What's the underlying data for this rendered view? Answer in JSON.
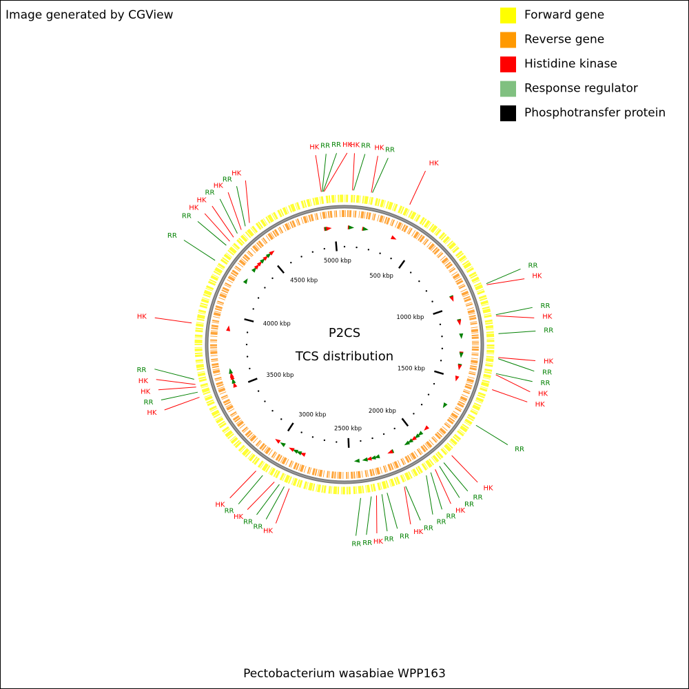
{
  "header_note": "Image generated by CGView",
  "center_title": "P2CS",
  "center_subtitle": "TCS distribution",
  "footer": "Pectobacterium wasabiae WPP163",
  "legend": [
    {
      "label": "Forward gene",
      "color": "#ffff00"
    },
    {
      "label": "Reverse gene",
      "color": "#ff9900"
    },
    {
      "label": "Histidine kinase",
      "color": "#ff0000"
    },
    {
      "label": "Response regulator",
      "color": "#80c080"
    },
    {
      "label": "Phosphotransfer protein",
      "color": "#000000"
    }
  ],
  "sequence_length_kbp": 5067,
  "ticks": [
    {
      "value": 500,
      "label": "500 kbp"
    },
    {
      "value": 1000,
      "label": "1000 kbp"
    },
    {
      "value": 1500,
      "label": "1500 kbp"
    },
    {
      "value": 2000,
      "label": "2000 kbp"
    },
    {
      "value": 2500,
      "label": "2500 kbp"
    },
    {
      "value": 3000,
      "label": "3000 kbp"
    },
    {
      "value": 3500,
      "label": "3500 kbp"
    },
    {
      "value": 4000,
      "label": "4000 kbp"
    },
    {
      "value": 4500,
      "label": "4500 kbp"
    },
    {
      "value": 5000,
      "label": "5000 kbp"
    }
  ],
  "features": [
    {
      "label": "HK",
      "color": "#ff0000",
      "position_kbp": 42
    },
    {
      "label": "RR",
      "color": "#008000",
      "position_kbp": 48
    },
    {
      "label": "HK",
      "color": "#ff0000",
      "position_kbp": 141
    },
    {
      "label": "RR",
      "color": "#008000",
      "position_kbp": 147
    },
    {
      "label": "HK",
      "color": "#ff0000",
      "position_kbp": 352
    },
    {
      "label": "RR",
      "color": "#008000",
      "position_kbp": 940
    },
    {
      "label": "HK",
      "color": "#ff0000",
      "position_kbp": 946
    },
    {
      "label": "RR",
      "color": "#008000",
      "position_kbp": 1110
    },
    {
      "label": "HK",
      "color": "#ff0000",
      "position_kbp": 1116
    },
    {
      "label": "RR",
      "color": "#008000",
      "position_kbp": 1210
    },
    {
      "label": "HK",
      "color": "#ff0000",
      "position_kbp": 1335
    },
    {
      "label": "RR",
      "color": "#008000",
      "position_kbp": 1341
    },
    {
      "label": "RR",
      "color": "#008000",
      "position_kbp": 1420
    },
    {
      "label": "HK",
      "color": "#ff0000",
      "position_kbp": 1426
    },
    {
      "label": "HK",
      "color": "#ff0000",
      "position_kbp": 1506
    },
    {
      "label": "RR",
      "color": "#008000",
      "position_kbp": 1711
    },
    {
      "label": "HK",
      "color": "#ff0000",
      "position_kbp": 1914
    },
    {
      "label": "RR",
      "color": "#008000",
      "position_kbp": 1970
    },
    {
      "label": "RR",
      "color": "#008000",
      "position_kbp": 1999
    },
    {
      "label": "HK",
      "color": "#ff0000",
      "position_kbp": 2027
    },
    {
      "label": "RR",
      "color": "#008000",
      "position_kbp": 2055
    },
    {
      "label": "RR",
      "color": "#008000",
      "position_kbp": 2083
    },
    {
      "label": "RR",
      "color": "#008000",
      "position_kbp": 2205
    },
    {
      "label": "HK",
      "color": "#ff0000",
      "position_kbp": 2212
    },
    {
      "label": "RR",
      "color": "#008000",
      "position_kbp": 2308
    },
    {
      "label": "RR",
      "color": "#008000",
      "position_kbp": 2336
    },
    {
      "label": "HK",
      "color": "#ff0000",
      "position_kbp": 2365
    },
    {
      "label": "RR",
      "color": "#008000",
      "position_kbp": 2393
    },
    {
      "label": "RR",
      "color": "#008000",
      "position_kbp": 2449
    },
    {
      "label": "HK",
      "color": "#ff0000",
      "position_kbp": 2829
    },
    {
      "label": "RR",
      "color": "#008000",
      "position_kbp": 2857
    },
    {
      "label": "RR",
      "color": "#008000",
      "position_kbp": 2885
    },
    {
      "label": "HK",
      "color": "#ff0000",
      "position_kbp": 2914
    },
    {
      "label": "RR",
      "color": "#008000",
      "position_kbp": 2984
    },
    {
      "label": "HK",
      "color": "#ff0000",
      "position_kbp": 3026
    },
    {
      "label": "HK",
      "color": "#ff0000",
      "position_kbp": 3519
    },
    {
      "label": "RR",
      "color": "#008000",
      "position_kbp": 3547
    },
    {
      "label": "HK",
      "color": "#ff0000",
      "position_kbp": 3575
    },
    {
      "label": "HK",
      "color": "#ff0000",
      "position_kbp": 3589
    },
    {
      "label": "RR",
      "color": "#008000",
      "position_kbp": 3617
    },
    {
      "label": "HK",
      "color": "#ff0000",
      "position_kbp": 3913
    },
    {
      "label": "RR",
      "color": "#008000",
      "position_kbp": 4265
    },
    {
      "label": "RR",
      "color": "#008000",
      "position_kbp": 4363
    },
    {
      "label": "HK",
      "color": "#ff0000",
      "position_kbp": 4391
    },
    {
      "label": "HK",
      "color": "#ff0000",
      "position_kbp": 4420
    },
    {
      "label": "RR",
      "color": "#008000",
      "position_kbp": 4448
    },
    {
      "label": "HK",
      "color": "#ff0000",
      "position_kbp": 4476
    },
    {
      "label": "RR",
      "color": "#008000",
      "position_kbp": 4504
    },
    {
      "label": "HK",
      "color": "#ff0000",
      "position_kbp": 4532
    },
    {
      "label": "HK",
      "color": "#ff0000",
      "position_kbp": 4945
    },
    {
      "label": "RR",
      "color": "#008000",
      "position_kbp": 4950
    },
    {
      "label": "RR",
      "color": "#008000",
      "position_kbp": 4955
    },
    {
      "label": "HK",
      "color": "#ff0000",
      "position_kbp": 4960
    }
  ]
}
